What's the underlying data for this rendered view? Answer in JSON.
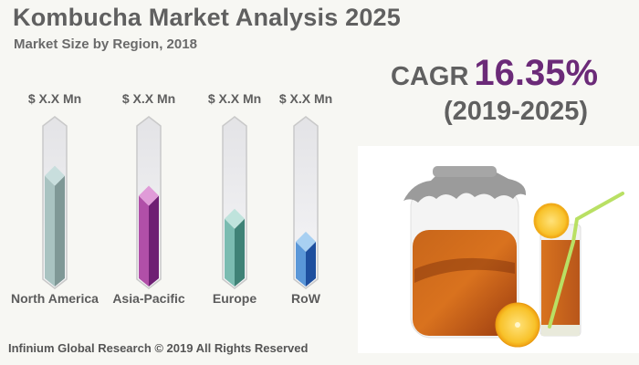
{
  "header": {
    "title": "Kombucha Market Analysis 2025",
    "subtitle": "Market Size by Region, 2018"
  },
  "cagr": {
    "label": "CAGR",
    "value": "16.35%",
    "period": "(2019-2025)",
    "value_color": "#6b2a78"
  },
  "footer": {
    "copyright": "Infinium Global Research © 2019 All Rights Reserved"
  },
  "photo": {
    "description": "kombucha-jar-with-glass-and-lemon"
  },
  "chart_data": {
    "type": "bar",
    "title": "Market Size by Region, 2018",
    "categories": [
      "North America",
      "Asia-Pacific",
      "Europe",
      "RoW"
    ],
    "value_labels": [
      "$ X.X Mn",
      "$ X.X Mn",
      "$ X.X Mn",
      "$ X.X Mn"
    ],
    "values": [
      0.74,
      0.61,
      0.46,
      0.31
    ],
    "value_note": "relative fill fraction of each thermometer bar; actual values are masked as $ X.X Mn",
    "colors": [
      "#9fb8b6",
      "#9b3a98",
      "#6fb3a8",
      "#4a86cf"
    ],
    "xlabel": "",
    "ylabel": "",
    "ylim": [
      0,
      1
    ],
    "grid": false,
    "legend": "none"
  }
}
